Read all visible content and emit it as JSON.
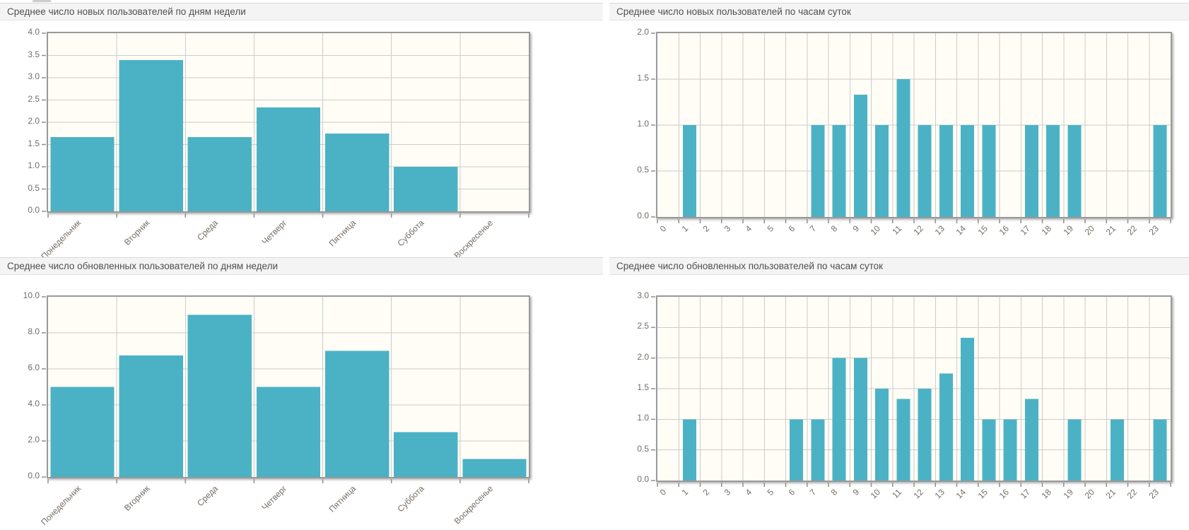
{
  "page": {
    "language": "ru"
  },
  "style": {
    "bar_color": "#4bb2c5",
    "plot_background": "#fffdf6",
    "gridline_color": "#cccccc",
    "grid_border_color": "#999999",
    "tick_text_color": "#756d64",
    "title_text_color": "#4f4f4f",
    "title_bar_background": "#f4f4f4"
  },
  "chart_data": [
    {
      "type": "bar",
      "title": "Среднее число новых пользователей по дням недели",
      "categories": [
        "Понедельник",
        "Вторник",
        "Среда",
        "Четверг",
        "Пятница",
        "Суббота",
        "Воскресенье"
      ],
      "values": [
        1.67,
        3.4,
        1.67,
        2.33,
        1.75,
        1.0,
        0
      ],
      "xlabel": "",
      "ylabel": "",
      "ylim": [
        0,
        4.0
      ],
      "ytick_step": 0.5,
      "ytick_labels": [
        "4.0",
        "3.5",
        "3.0",
        "2.5",
        "2.0",
        "1.5",
        "1.0",
        "0.5",
        "0.0"
      ],
      "grid": true,
      "legend": "none"
    },
    {
      "type": "bar",
      "title": "Среднее число новых пользователей по часам суток",
      "categories": [
        "0",
        "1",
        "2",
        "3",
        "4",
        "5",
        "6",
        "7",
        "8",
        "9",
        "10",
        "11",
        "12",
        "13",
        "14",
        "15",
        "16",
        "17",
        "18",
        "19",
        "20",
        "21",
        "22",
        "23"
      ],
      "values": [
        0,
        1,
        0,
        0,
        0,
        0,
        0,
        1,
        1,
        1.33,
        1,
        1.5,
        1,
        1,
        1,
        1,
        0,
        1,
        1,
        1,
        0,
        0,
        0,
        1
      ],
      "xlabel": "",
      "ylabel": "",
      "ylim": [
        0,
        2.0
      ],
      "ytick_step": 0.5,
      "ytick_labels": [
        "2.0",
        "1.5",
        "1.0",
        "0.5",
        "0.0"
      ],
      "grid": true,
      "legend": "none"
    },
    {
      "type": "bar",
      "title": "Среднее число обновленных пользователей по дням недели",
      "categories": [
        "Понедельник",
        "Вторник",
        "Среда",
        "Четверг",
        "Пятница",
        "Суббота",
        "Воскресенье"
      ],
      "values": [
        5.0,
        6.75,
        9.0,
        5.0,
        7.0,
        2.5,
        1.0
      ],
      "xlabel": "",
      "ylabel": "",
      "ylim": [
        0,
        10.0
      ],
      "ytick_step": 2.0,
      "ytick_labels": [
        "10.0",
        "8.0",
        "6.0",
        "4.0",
        "2.0",
        "0.0"
      ],
      "grid": true,
      "legend": "none"
    },
    {
      "type": "bar",
      "title": "Среднее число обновленных пользователей по часам суток",
      "categories": [
        "0",
        "1",
        "2",
        "3",
        "4",
        "5",
        "6",
        "7",
        "8",
        "9",
        "10",
        "11",
        "12",
        "13",
        "14",
        "15",
        "16",
        "17",
        "18",
        "19",
        "20",
        "21",
        "22",
        "23"
      ],
      "values": [
        0,
        1,
        0,
        0,
        0,
        0,
        1,
        1,
        2,
        2,
        1.5,
        1.33,
        1.5,
        1.75,
        2.33,
        1,
        1,
        1.33,
        0,
        1,
        0,
        1,
        0,
        1
      ],
      "xlabel": "",
      "ylabel": "",
      "ylim": [
        0,
        3.0
      ],
      "ytick_step": 0.5,
      "ytick_labels": [
        "3.0",
        "2.5",
        "2.0",
        "1.5",
        "1.0",
        "0.5",
        "0.0"
      ],
      "grid": true,
      "legend": "none"
    }
  ]
}
